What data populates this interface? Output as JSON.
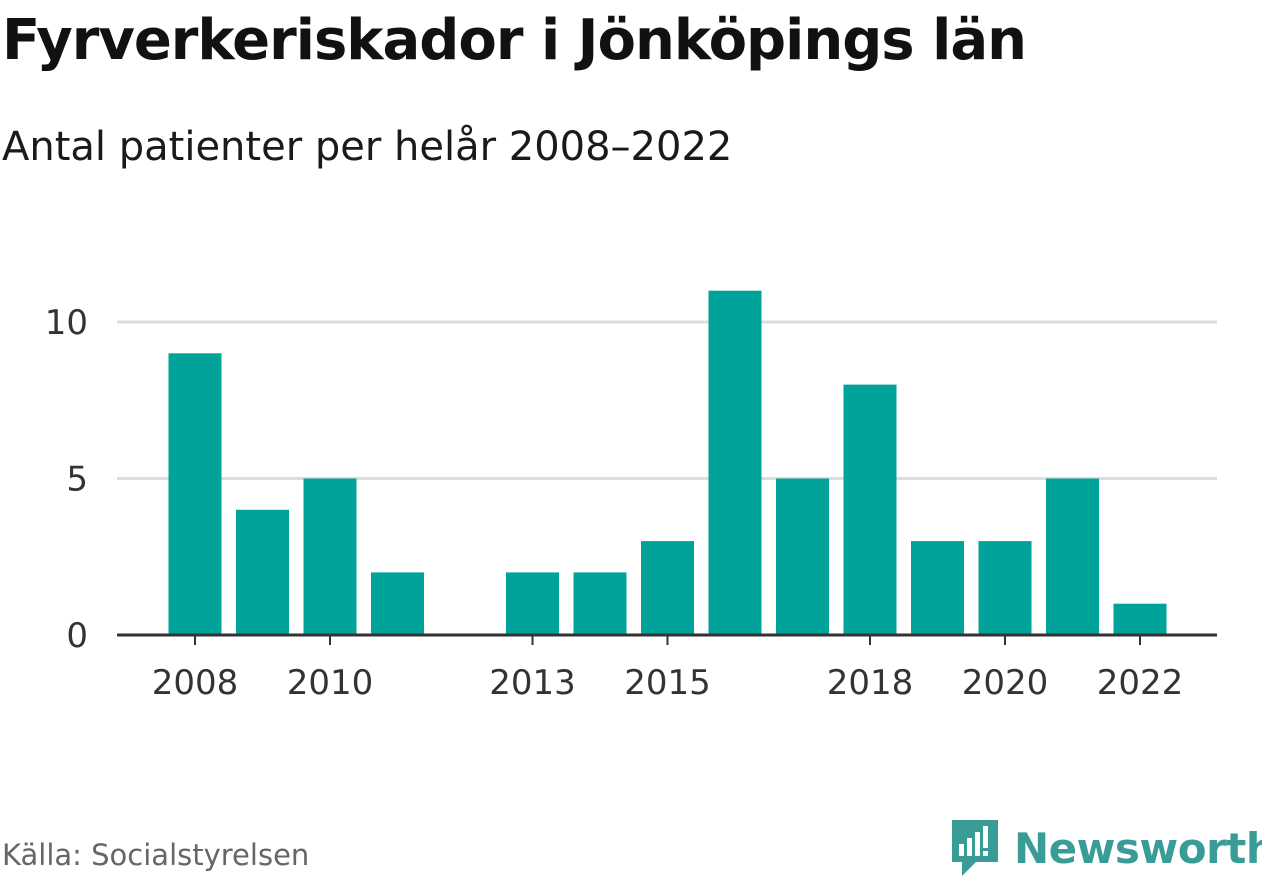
{
  "header": {
    "title": "Fyrverkeriskador i Jönköpings län",
    "subtitle": "Antal patienter per helår 2008–2022"
  },
  "footer": {
    "source": "Källa: Socialstyrelsen",
    "brand": "Newsworthy"
  },
  "colors": {
    "bar": "#00a39a",
    "gridline": "#dddddd",
    "axis": "#333333",
    "brand": "#3a9c97"
  },
  "chart_data": {
    "type": "bar",
    "title": "Fyrverkeriskador i Jönköpings län",
    "subtitle": "Antal patienter per helår 2008–2022",
    "xlabel": "",
    "ylabel": "",
    "categories": [
      2008,
      2009,
      2010,
      2011,
      2012,
      2013,
      2014,
      2015,
      2016,
      2017,
      2018,
      2019,
      2020,
      2021,
      2022
    ],
    "values": [
      9,
      4,
      5,
      2,
      0,
      2,
      2,
      3,
      11,
      5,
      8,
      3,
      3,
      5,
      1
    ],
    "x_tick_labels": [
      "2008",
      "2010",
      "2013",
      "2015",
      "2018",
      "2020",
      "2022"
    ],
    "y_ticks": [
      0,
      5,
      10
    ],
    "ylim": [
      0,
      11
    ],
    "grid": true
  }
}
